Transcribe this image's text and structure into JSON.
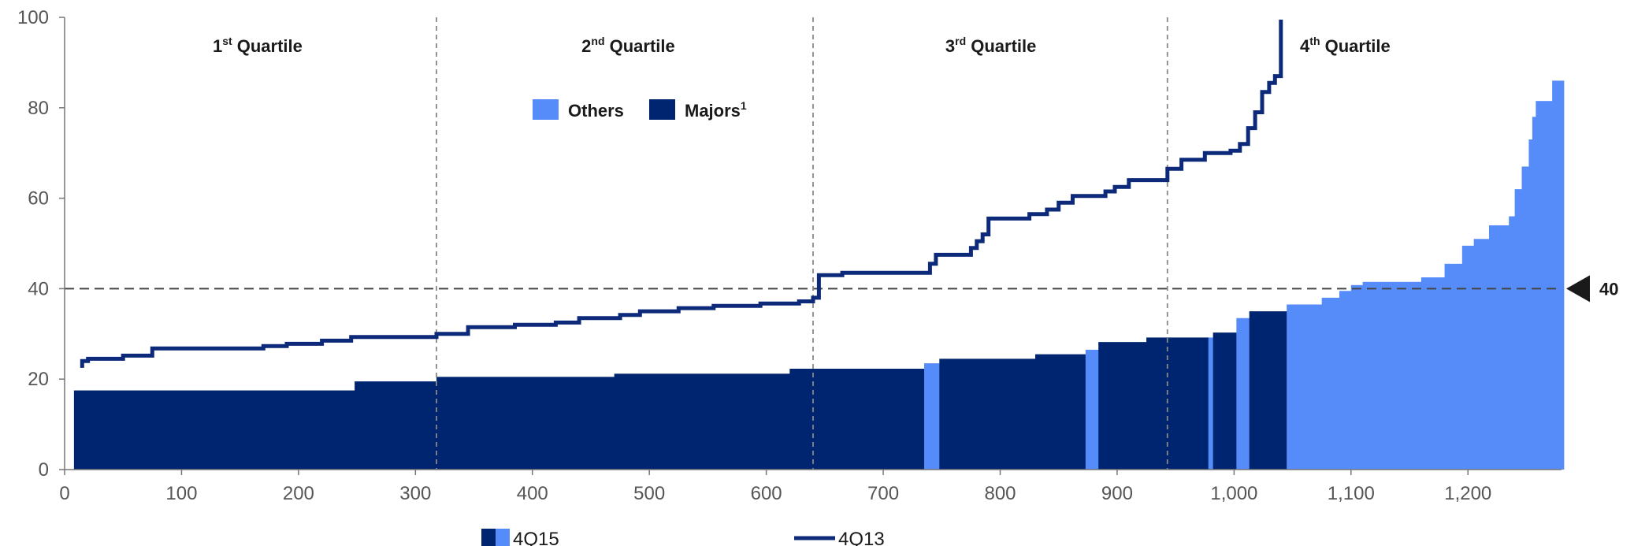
{
  "colors": {
    "majors": "#002570",
    "others": "#568cfa",
    "line": "#0d2a7a"
  },
  "chart_data": {
    "type": "area",
    "xlim": [
      0,
      1280
    ],
    "ylim": [
      0,
      100
    ],
    "x_ticks": [
      {
        "value": 0,
        "label": "0"
      },
      {
        "value": 100,
        "label": "100"
      },
      {
        "value": 200,
        "label": "200"
      },
      {
        "value": 300,
        "label": "300"
      },
      {
        "value": 400,
        "label": "400"
      },
      {
        "value": 500,
        "label": "500"
      },
      {
        "value": 600,
        "label": "600"
      },
      {
        "value": 700,
        "label": "700"
      },
      {
        "value": 800,
        "label": "800"
      },
      {
        "value": 900,
        "label": "900"
      },
      {
        "value": 1000,
        "label": "1,000"
      },
      {
        "value": 1100,
        "label": "1,100"
      },
      {
        "value": 1200,
        "label": "1,200"
      }
    ],
    "y_ticks": [
      {
        "value": 0,
        "label": "0"
      },
      {
        "value": 20,
        "label": "20"
      },
      {
        "value": 40,
        "label": "40"
      },
      {
        "value": 60,
        "label": "60"
      },
      {
        "value": 80,
        "label": "80"
      },
      {
        "value": 100,
        "label": "100"
      }
    ],
    "quartiles": [
      {
        "num": "1",
        "sup": "st",
        "rest": " Quartile",
        "x_center": 165
      },
      {
        "num": "2",
        "sup": "nd",
        "rest": " Quartile",
        "x_center": 482
      },
      {
        "num": "3",
        "sup": "rd",
        "rest": " Quartile",
        "x_center": 792
      },
      {
        "num": "4",
        "sup": "th",
        "rest": " Quartile",
        "x_center": 1095
      }
    ],
    "quartile_dividers": [
      318,
      640,
      943
    ],
    "reference_line": {
      "value": 40,
      "label": "40"
    },
    "inner_legend": [
      {
        "name": "Others",
        "sup": "",
        "color_key": "others"
      },
      {
        "name": "Majors",
        "sup": "1",
        "color_key": "majors"
      }
    ],
    "bottom_legend": {
      "bars_label": "4Q15",
      "line_label": "4Q13"
    },
    "bars_4Q15": [
      {
        "x0": 8,
        "x1": 248,
        "y": 17.5,
        "cat": "majors"
      },
      {
        "x0": 248,
        "x1": 318,
        "y": 19.5,
        "cat": "majors"
      },
      {
        "x0": 318,
        "x1": 470,
        "y": 20.5,
        "cat": "majors"
      },
      {
        "x0": 470,
        "x1": 620,
        "y": 21.2,
        "cat": "majors"
      },
      {
        "x0": 620,
        "x1": 735,
        "y": 22.3,
        "cat": "majors"
      },
      {
        "x0": 735,
        "x1": 748,
        "y": 23.5,
        "cat": "others"
      },
      {
        "x0": 748,
        "x1": 830,
        "y": 24.5,
        "cat": "majors"
      },
      {
        "x0": 830,
        "x1": 873,
        "y": 25.5,
        "cat": "majors"
      },
      {
        "x0": 873,
        "x1": 884,
        "y": 26.5,
        "cat": "others"
      },
      {
        "x0": 884,
        "x1": 925,
        "y": 28.2,
        "cat": "majors"
      },
      {
        "x0": 925,
        "x1": 978,
        "y": 29.2,
        "cat": "majors"
      },
      {
        "x0": 978,
        "x1": 982,
        "y": 29.2,
        "cat": "others"
      },
      {
        "x0": 982,
        "x1": 1002,
        "y": 30.3,
        "cat": "majors"
      },
      {
        "x0": 1002,
        "x1": 1013,
        "y": 33.5,
        "cat": "others"
      },
      {
        "x0": 1013,
        "x1": 1045,
        "y": 35.0,
        "cat": "majors"
      },
      {
        "x0": 1045,
        "x1": 1075,
        "y": 36.5,
        "cat": "others"
      },
      {
        "x0": 1075,
        "x1": 1090,
        "y": 38.0,
        "cat": "others"
      },
      {
        "x0": 1090,
        "x1": 1100,
        "y": 39.5,
        "cat": "others"
      },
      {
        "x0": 1100,
        "x1": 1110,
        "y": 40.8,
        "cat": "others"
      },
      {
        "x0": 1110,
        "x1": 1160,
        "y": 41.5,
        "cat": "others"
      },
      {
        "x0": 1160,
        "x1": 1180,
        "y": 42.5,
        "cat": "others"
      },
      {
        "x0": 1180,
        "x1": 1195,
        "y": 45.5,
        "cat": "others"
      },
      {
        "x0": 1195,
        "x1": 1205,
        "y": 49.5,
        "cat": "others"
      },
      {
        "x0": 1205,
        "x1": 1218,
        "y": 51.0,
        "cat": "others"
      },
      {
        "x0": 1218,
        "x1": 1235,
        "y": 54.0,
        "cat": "others"
      },
      {
        "x0": 1235,
        "x1": 1240,
        "y": 56.0,
        "cat": "others"
      },
      {
        "x0": 1240,
        "x1": 1246,
        "y": 62.0,
        "cat": "others"
      },
      {
        "x0": 1246,
        "x1": 1252,
        "y": 67.0,
        "cat": "others"
      },
      {
        "x0": 1252,
        "x1": 1255,
        "y": 73.0,
        "cat": "others"
      },
      {
        "x0": 1255,
        "x1": 1258,
        "y": 78.0,
        "cat": "others"
      },
      {
        "x0": 1258,
        "x1": 1272,
        "y": 81.5,
        "cat": "others"
      },
      {
        "x0": 1272,
        "x1": 1282,
        "y": 86.0,
        "cat": "others"
      }
    ],
    "line_4Q13": [
      [
        15,
        22.5
      ],
      [
        15,
        24.0
      ],
      [
        20,
        24.0
      ],
      [
        20,
        24.5
      ],
      [
        50,
        24.5
      ],
      [
        50,
        25.2
      ],
      [
        75,
        25.2
      ],
      [
        75,
        26.8
      ],
      [
        170,
        26.8
      ],
      [
        170,
        27.3
      ],
      [
        190,
        27.3
      ],
      [
        190,
        27.8
      ],
      [
        220,
        27.8
      ],
      [
        220,
        28.5
      ],
      [
        245,
        28.5
      ],
      [
        245,
        29.3
      ],
      [
        318,
        29.3
      ],
      [
        318,
        30.0
      ],
      [
        345,
        30.0
      ],
      [
        345,
        31.5
      ],
      [
        385,
        31.5
      ],
      [
        385,
        32.0
      ],
      [
        420,
        32.0
      ],
      [
        420,
        32.5
      ],
      [
        440,
        32.5
      ],
      [
        440,
        33.5
      ],
      [
        475,
        33.5
      ],
      [
        475,
        34.2
      ],
      [
        492,
        34.2
      ],
      [
        492,
        35.0
      ],
      [
        525,
        35.0
      ],
      [
        525,
        35.7
      ],
      [
        555,
        35.7
      ],
      [
        555,
        36.2
      ],
      [
        595,
        36.2
      ],
      [
        595,
        36.7
      ],
      [
        628,
        36.7
      ],
      [
        628,
        37.2
      ],
      [
        640,
        37.2
      ],
      [
        640,
        38.0
      ],
      [
        645,
        38.0
      ],
      [
        645,
        43.0
      ],
      [
        665,
        43.0
      ],
      [
        665,
        43.5
      ],
      [
        740,
        43.5
      ],
      [
        740,
        45.5
      ],
      [
        745,
        45.5
      ],
      [
        745,
        47.5
      ],
      [
        775,
        47.5
      ],
      [
        775,
        49.0
      ],
      [
        780,
        49.0
      ],
      [
        780,
        50.5
      ],
      [
        785,
        50.5
      ],
      [
        785,
        52.0
      ],
      [
        790,
        52.0
      ],
      [
        790,
        55.5
      ],
      [
        825,
        55.5
      ],
      [
        825,
        56.5
      ],
      [
        840,
        56.5
      ],
      [
        840,
        57.5
      ],
      [
        850,
        57.5
      ],
      [
        850,
        59.0
      ],
      [
        862,
        59.0
      ],
      [
        862,
        60.5
      ],
      [
        890,
        60.5
      ],
      [
        890,
        61.5
      ],
      [
        898,
        61.5
      ],
      [
        898,
        62.5
      ],
      [
        910,
        62.5
      ],
      [
        910,
        64.0
      ],
      [
        943,
        64.0
      ],
      [
        943,
        66.5
      ],
      [
        955,
        66.5
      ],
      [
        955,
        68.5
      ],
      [
        975,
        68.5
      ],
      [
        975,
        70.0
      ],
      [
        997,
        70.0
      ],
      [
        997,
        70.5
      ],
      [
        1005,
        70.5
      ],
      [
        1005,
        72.0
      ],
      [
        1012,
        72.0
      ],
      [
        1012,
        75.5
      ],
      [
        1018,
        75.5
      ],
      [
        1018,
        79.0
      ],
      [
        1024,
        79.0
      ],
      [
        1024,
        83.5
      ],
      [
        1030,
        83.5
      ],
      [
        1030,
        85.5
      ],
      [
        1035,
        85.5
      ],
      [
        1035,
        87.0
      ],
      [
        1040,
        87.0
      ],
      [
        1040,
        99.5
      ]
    ]
  }
}
